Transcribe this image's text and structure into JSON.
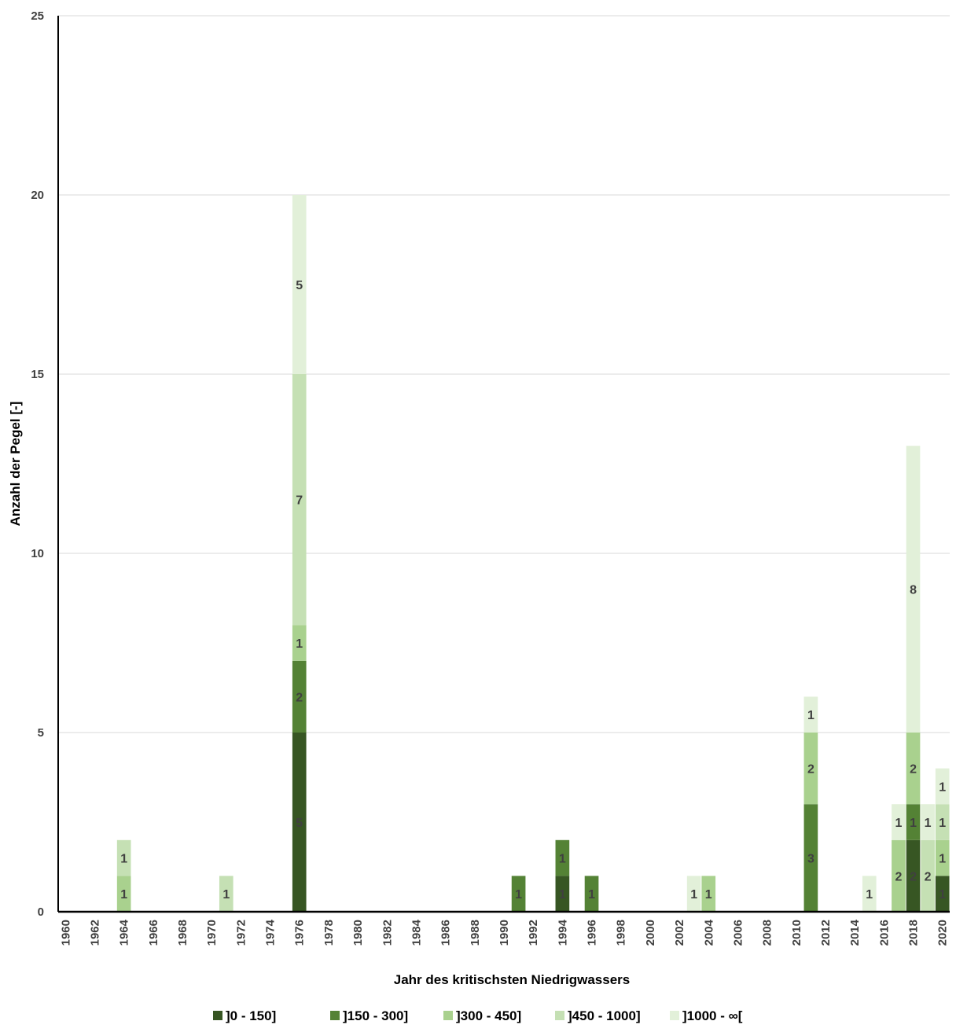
{
  "chart_data": {
    "type": "bar",
    "stacked": true,
    "title": "",
    "xlabel": "Jahr des kritischsten Niedrigwassers",
    "ylabel": "Anzahl der Pegel [-]",
    "ylim": [
      0,
      25
    ],
    "yticks": [
      0,
      5,
      10,
      15,
      20,
      25
    ],
    "xrange": [
      1960,
      2020
    ],
    "xtick_labels": [
      "1960",
      "1962",
      "1964",
      "1966",
      "1968",
      "1970",
      "1972",
      "1974",
      "1976",
      "1978",
      "1980",
      "1982",
      "1984",
      "1986",
      "1988",
      "1990",
      "1992",
      "1994",
      "1996",
      "1998",
      "2000",
      "2002",
      "2004",
      "2006",
      "2008",
      "2010",
      "2012",
      "2014",
      "2016",
      "2018",
      "2020"
    ],
    "grid": "horizontal",
    "legend_position": "bottom",
    "categories": [
      "1964",
      "1971",
      "1976",
      "1991",
      "1994",
      "1996",
      "2003",
      "2004",
      "2011",
      "2015",
      "2017",
      "2018",
      "2019",
      "2020"
    ],
    "series": [
      {
        "name": "]0 - 150]",
        "color": "#375623",
        "values": [
          0,
          0,
          5,
          0,
          1,
          0,
          0,
          0,
          0,
          0,
          0,
          2,
          0,
          1
        ]
      },
      {
        "name": "]150 - 300]",
        "color": "#548235",
        "values": [
          0,
          0,
          2,
          1,
          1,
          1,
          0,
          0,
          3,
          0,
          0,
          1,
          0,
          0
        ]
      },
      {
        "name": "]300 - 450]",
        "color": "#a9d18e",
        "values": [
          1,
          0,
          1,
          0,
          0,
          0,
          0,
          1,
          2,
          0,
          2,
          2,
          0,
          1
        ]
      },
      {
        "name": "]450 - 1000]",
        "color": "#c5e0b4",
        "values": [
          1,
          1,
          7,
          0,
          0,
          0,
          0,
          0,
          0,
          0,
          0,
          0,
          2,
          1
        ]
      },
      {
        "name": "]1000 - ∞[",
        "color": "#e2f0d9",
        "values": [
          0,
          0,
          5,
          0,
          0,
          0,
          1,
          0,
          1,
          1,
          1,
          8,
          1,
          1
        ]
      }
    ]
  }
}
